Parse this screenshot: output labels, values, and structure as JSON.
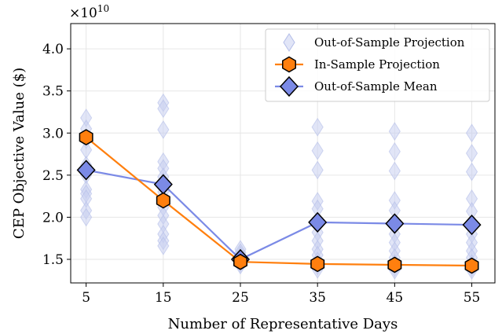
{
  "chart_data": {
    "type": "line",
    "xlabel": "Number of Representative Days",
    "ylabel": "CEP Objective Value ($)",
    "y_multiplier_label": "×10",
    "y_multiplier_exponent": "10",
    "x": [
      5,
      15,
      25,
      35,
      45,
      55
    ],
    "x_ticks": [
      "5",
      "15",
      "25",
      "35",
      "45",
      "55"
    ],
    "y_ticks": [
      "1.5",
      "2.0",
      "2.5",
      "3.0",
      "3.5",
      "4.0"
    ],
    "y_tick_values": [
      1.5,
      2.0,
      2.5,
      3.0,
      3.5,
      4.0
    ],
    "xlim": [
      3.0,
      58.0
    ],
    "ylim": [
      1.22,
      4.3
    ],
    "grid": true,
    "legend_position": "top-right",
    "series": [
      {
        "name": "Out-of-Sample Projection",
        "kind": "scatter",
        "marker": "diamond",
        "color": "#c9d0f0",
        "points": [
          [
            5,
            3.18
          ],
          [
            5,
            3.05
          ],
          [
            5,
            2.92
          ],
          [
            5,
            2.8
          ],
          [
            5,
            2.62
          ],
          [
            5,
            2.5
          ],
          [
            5,
            2.33
          ],
          [
            5,
            2.28
          ],
          [
            5,
            2.22
          ],
          [
            5,
            2.08
          ],
          [
            5,
            2.0
          ],
          [
            15,
            3.36
          ],
          [
            15,
            3.29
          ],
          [
            15,
            3.04
          ],
          [
            15,
            2.66
          ],
          [
            15,
            2.58
          ],
          [
            15,
            2.48
          ],
          [
            15,
            2.42
          ],
          [
            15,
            2.3
          ],
          [
            15,
            2.2
          ],
          [
            15,
            2.12
          ],
          [
            15,
            2.02
          ],
          [
            15,
            1.92
          ],
          [
            15,
            1.8
          ],
          [
            15,
            1.72
          ],
          [
            15,
            1.66
          ],
          [
            25,
            1.62
          ],
          [
            25,
            1.58
          ],
          [
            25,
            1.55
          ],
          [
            25,
            1.52
          ],
          [
            25,
            1.5
          ],
          [
            25,
            1.48
          ],
          [
            25,
            1.45
          ],
          [
            25,
            1.43
          ],
          [
            35,
            3.07
          ],
          [
            35,
            2.79
          ],
          [
            35,
            2.56
          ],
          [
            35,
            2.19
          ],
          [
            35,
            2.1
          ],
          [
            35,
            1.92
          ],
          [
            35,
            1.82
          ],
          [
            35,
            1.72
          ],
          [
            35,
            1.62
          ],
          [
            35,
            1.55
          ],
          [
            35,
            1.48
          ],
          [
            35,
            1.42
          ],
          [
            35,
            1.38
          ],
          [
            45,
            3.02
          ],
          [
            45,
            2.78
          ],
          [
            45,
            2.55
          ],
          [
            45,
            2.2
          ],
          [
            45,
            2.08
          ],
          [
            45,
            1.9
          ],
          [
            45,
            1.8
          ],
          [
            45,
            1.7
          ],
          [
            45,
            1.6
          ],
          [
            45,
            1.52
          ],
          [
            45,
            1.45
          ],
          [
            45,
            1.4
          ],
          [
            45,
            1.37
          ],
          [
            55,
            3.0
          ],
          [
            55,
            2.76
          ],
          [
            55,
            2.54
          ],
          [
            55,
            2.22
          ],
          [
            55,
            2.07
          ],
          [
            55,
            1.88
          ],
          [
            55,
            1.8
          ],
          [
            55,
            1.7
          ],
          [
            55,
            1.6
          ],
          [
            55,
            1.52
          ],
          [
            55,
            1.45
          ],
          [
            55,
            1.4
          ],
          [
            55,
            1.37
          ]
        ]
      },
      {
        "name": "In-Sample Projection",
        "kind": "line",
        "marker": "hexagon",
        "color": "#ff7f0e",
        "values": [
          2.95,
          2.2,
          1.47,
          1.445,
          1.435,
          1.425
        ]
      },
      {
        "name": "Out-of-Sample Mean",
        "kind": "line",
        "marker": "diamond",
        "color": "#7b8ae6",
        "values": [
          2.56,
          2.39,
          1.5,
          1.94,
          1.925,
          1.91
        ]
      }
    ]
  }
}
